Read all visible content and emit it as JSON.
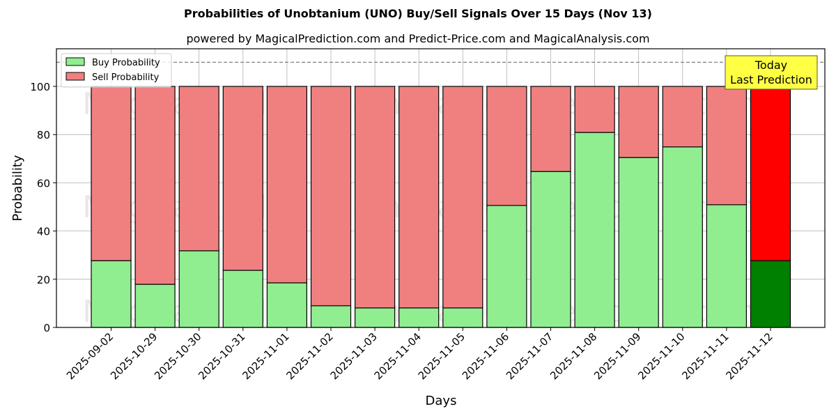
{
  "chart_data": {
    "type": "bar",
    "stacked": true,
    "title": "Probabilities of Unobtanium (UNO) Buy/Sell Signals Over 15 Days (Nov 13)",
    "subtitle": "powered by MagicalPrediction.com and Predict-Price.com and MagicalAnalysis.com",
    "xlabel": "Days",
    "ylabel": "Probability",
    "ylim": [
      0,
      115
    ],
    "yticks": [
      0,
      20,
      40,
      60,
      80,
      100
    ],
    "grid": true,
    "legend_position": "upper left",
    "reference_line": {
      "y": 110,
      "style": "dashed"
    },
    "categories": [
      "2025-09-02",
      "2025-10-29",
      "2025-10-30",
      "2025-10-31",
      "2025-11-01",
      "2025-11-02",
      "2025-11-03",
      "2025-11-04",
      "2025-11-05",
      "2025-11-06",
      "2025-11-07",
      "2025-11-08",
      "2025-11-09",
      "2025-11-10",
      "2025-11-11",
      "2025-11-12"
    ],
    "series": [
      {
        "name": "Buy Probability",
        "color": "#90ee90",
        "values": [
          27.7,
          17.9,
          31.8,
          23.7,
          18.5,
          9.0,
          8.1,
          8.1,
          8.1,
          50.6,
          64.7,
          80.9,
          70.5,
          74.9,
          50.9,
          27.7
        ]
      },
      {
        "name": "Sell Probability",
        "color": "#f08080",
        "values": [
          72.3,
          82.1,
          68.2,
          76.3,
          81.5,
          91.0,
          91.9,
          91.9,
          91.9,
          49.4,
          35.3,
          19.1,
          29.5,
          25.1,
          49.1,
          72.3
        ]
      }
    ],
    "highlight": {
      "index": 15,
      "buy_color": "#008000",
      "sell_color": "#ff0000"
    },
    "annotation": {
      "line1": "Today",
      "line2": "Last Prediction",
      "bg": "#ffff44"
    },
    "watermarks": [
      "MagicalAnalysis.com",
      "MagicalPrediction.com"
    ]
  }
}
